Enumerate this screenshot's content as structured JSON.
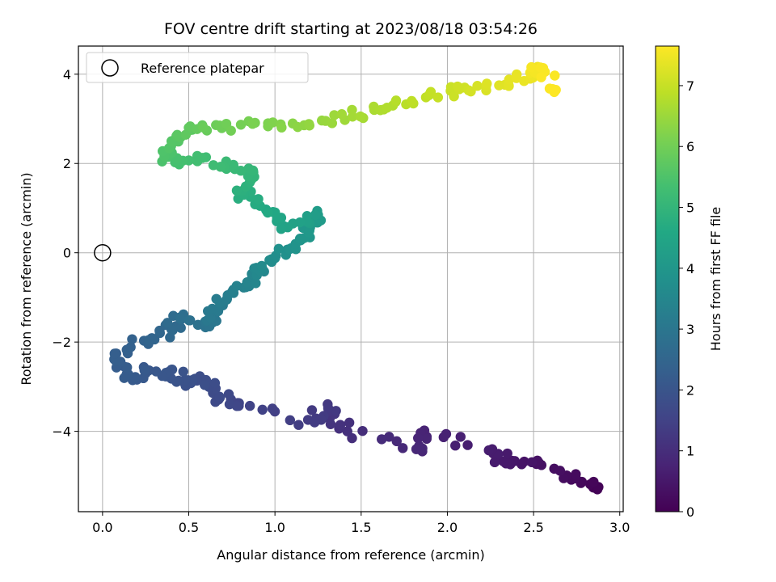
{
  "chart_data": {
    "type": "scatter",
    "title": "FOV centre drift starting at 2023/08/18 03:54:26",
    "xlabel": "Angular distance from reference (arcmin)",
    "ylabel": "Rotation from reference (arcmin)",
    "colorbar_label": "Hours from first FF file",
    "xlim": [
      -0.14,
      3.02
    ],
    "ylim": [
      -5.8,
      4.63
    ],
    "clim": [
      0,
      7.65
    ],
    "xticks": [
      "0.0",
      "0.5",
      "1.0",
      "1.5",
      "2.0",
      "2.5",
      "3.0"
    ],
    "xtick_values": [
      0,
      0.5,
      1.0,
      1.5,
      2.0,
      2.5,
      3.0
    ],
    "yticks": [
      "−4",
      "−2",
      "0",
      "2",
      "4"
    ],
    "ytick_values": [
      -4,
      -2,
      0,
      2,
      4
    ],
    "cticks": [
      "0",
      "1",
      "2",
      "3",
      "4",
      "5",
      "6",
      "7"
    ],
    "ctick_values": [
      0,
      1,
      2,
      3,
      4,
      5,
      6,
      7
    ],
    "colormap": "viridis",
    "grid": true,
    "legend": {
      "placement": "top-left",
      "entries": [
        {
          "label": "Reference platepar",
          "marker": "open-circle"
        }
      ]
    },
    "reference_point": {
      "x": 0.0,
      "y": 0.0
    },
    "anchors": [
      {
        "x": 2.87,
        "y": -5.3,
        "t": 0.05
      },
      {
        "x": 2.74,
        "y": -5.05,
        "t": 0.2
      },
      {
        "x": 2.53,
        "y": -4.7,
        "t": 0.35
      },
      {
        "x": 2.34,
        "y": -4.72,
        "t": 0.5
      },
      {
        "x": 2.26,
        "y": -4.4,
        "t": 0.6
      },
      {
        "x": 1.88,
        "y": -4.12,
        "t": 0.75
      },
      {
        "x": 1.82,
        "y": -4.4,
        "t": 0.85
      },
      {
        "x": 1.42,
        "y": -4.0,
        "t": 1.05
      },
      {
        "x": 1.31,
        "y": -3.5,
        "t": 1.25
      },
      {
        "x": 1.23,
        "y": -3.8,
        "t": 1.35
      },
      {
        "x": 0.79,
        "y": -3.43,
        "t": 1.55
      },
      {
        "x": 0.68,
        "y": -3.25,
        "t": 1.7
      },
      {
        "x": 0.6,
        "y": -2.85,
        "t": 1.8
      },
      {
        "x": 0.48,
        "y": -2.95,
        "t": 1.9
      },
      {
        "x": 0.4,
        "y": -2.62,
        "t": 2.0
      },
      {
        "x": 0.25,
        "y": -2.7,
        "t": 2.1
      },
      {
        "x": 0.14,
        "y": -2.72,
        "t": 2.2
      },
      {
        "x": 0.07,
        "y": -2.26,
        "t": 2.3
      },
      {
        "x": 0.28,
        "y": -1.95,
        "t": 2.45
      },
      {
        "x": 0.4,
        "y": -1.72,
        "t": 2.6
      },
      {
        "x": 0.46,
        "y": -1.45,
        "t": 2.75
      },
      {
        "x": 0.62,
        "y": -1.65,
        "t": 2.95
      },
      {
        "x": 0.62,
        "y": -1.35,
        "t": 3.1
      },
      {
        "x": 0.72,
        "y": -1.05,
        "t": 3.2
      },
      {
        "x": 0.85,
        "y": -0.75,
        "t": 3.4
      },
      {
        "x": 0.88,
        "y": -0.35,
        "t": 3.55
      },
      {
        "x": 1.0,
        "y": -0.12,
        "t": 3.7
      },
      {
        "x": 1.12,
        "y": 0.2,
        "t": 3.9
      },
      {
        "x": 1.2,
        "y": 0.5,
        "t": 4.05
      },
      {
        "x": 1.25,
        "y": 0.85,
        "t": 4.2
      },
      {
        "x": 1.05,
        "y": 0.6,
        "t": 4.4
      },
      {
        "x": 0.95,
        "y": 0.95,
        "t": 4.6
      },
      {
        "x": 0.82,
        "y": 1.3,
        "t": 4.8
      },
      {
        "x": 0.88,
        "y": 1.7,
        "t": 5.0
      },
      {
        "x": 0.75,
        "y": 1.95,
        "t": 5.15
      },
      {
        "x": 0.55,
        "y": 2.05,
        "t": 5.3
      },
      {
        "x": 0.38,
        "y": 2.15,
        "t": 5.45
      },
      {
        "x": 0.4,
        "y": 2.5,
        "t": 5.6
      },
      {
        "x": 0.5,
        "y": 2.8,
        "t": 5.75
      },
      {
        "x": 0.68,
        "y": 2.85,
        "t": 5.95
      },
      {
        "x": 0.96,
        "y": 2.9,
        "t": 6.15
      },
      {
        "x": 1.2,
        "y": 2.85,
        "t": 6.4
      },
      {
        "x": 1.45,
        "y": 3.05,
        "t": 6.6
      },
      {
        "x": 1.65,
        "y": 3.25,
        "t": 6.75
      },
      {
        "x": 1.9,
        "y": 3.55,
        "t": 6.95
      },
      {
        "x": 2.1,
        "y": 3.7,
        "t": 7.1
      },
      {
        "x": 2.3,
        "y": 3.75,
        "t": 7.3
      },
      {
        "x": 2.48,
        "y": 3.9,
        "t": 7.45
      },
      {
        "x": 2.54,
        "y": 4.15,
        "t": 7.6
      },
      {
        "x": 2.62,
        "y": 3.6,
        "t": 7.65
      }
    ]
  }
}
